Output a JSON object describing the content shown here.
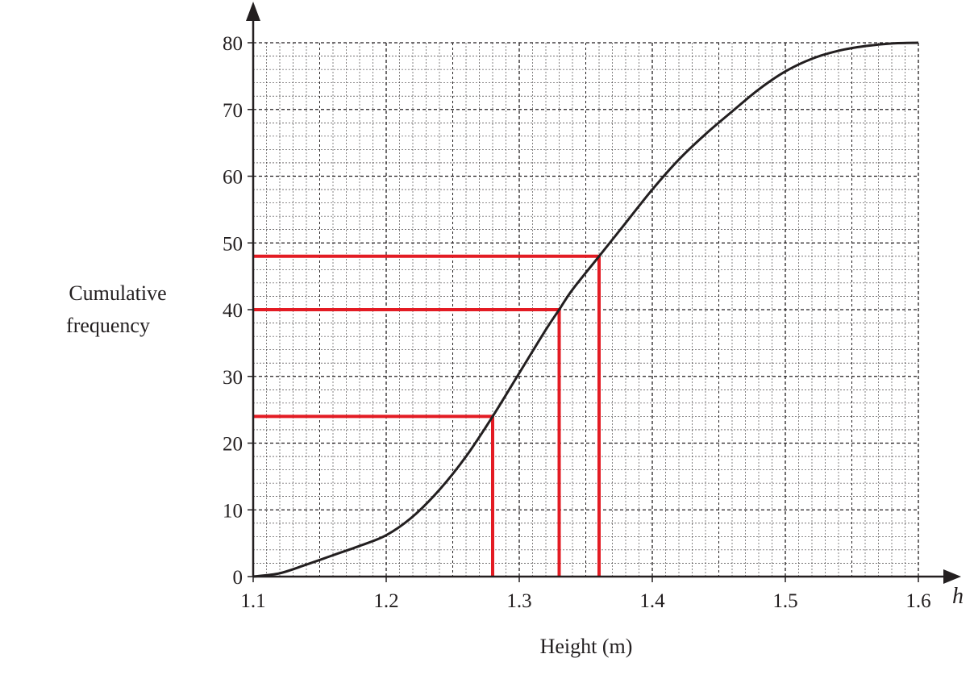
{
  "chart_data": {
    "type": "line",
    "title": "",
    "xlabel": "Height (m)",
    "ylabel_lines": [
      "Cumulative",
      "frequency"
    ],
    "x_variable": "h",
    "xlim": [
      1.1,
      1.6
    ],
    "ylim": [
      0,
      80
    ],
    "x_ticks": [
      1.1,
      1.2,
      1.3,
      1.4,
      1.5,
      1.6
    ],
    "x_tick_labels": [
      "1.1",
      "1.2",
      "1.3",
      "1.4",
      "1.5",
      "1.6"
    ],
    "y_ticks": [
      0,
      10,
      20,
      30,
      40,
      50,
      60,
      70,
      80
    ],
    "y_tick_labels": [
      "0",
      "10",
      "20",
      "30",
      "40",
      "50",
      "60",
      "70",
      "80"
    ],
    "grid": true,
    "x_minor_step": 0.01,
    "y_minor_step": 2,
    "series": [
      {
        "x": [
          1.1,
          1.12,
          1.14,
          1.16,
          1.18,
          1.2,
          1.22,
          1.24,
          1.26,
          1.28,
          1.3,
          1.32,
          1.33,
          1.34,
          1.36,
          1.38,
          1.4,
          1.42,
          1.44,
          1.46,
          1.48,
          1.5,
          1.52,
          1.54,
          1.56,
          1.58,
          1.6
        ],
        "y": [
          0,
          0.5,
          1.8,
          3.2,
          4.6,
          6.2,
          9,
          13,
          18,
          24,
          30.5,
          37,
          40,
          43,
          48,
          53,
          58,
          62.5,
          66.3,
          69.7,
          73,
          75.7,
          77.6,
          78.8,
          79.5,
          79.9,
          80
        ],
        "color": "#231f20"
      }
    ],
    "reading_lines": [
      {
        "x": 1.28,
        "y": 24
      },
      {
        "x": 1.33,
        "y": 40
      },
      {
        "x": 1.36,
        "y": 48
      }
    ],
    "reading_line_color": "#e31b23",
    "curve_color": "#231f20",
    "grid_color": "#231f20"
  }
}
